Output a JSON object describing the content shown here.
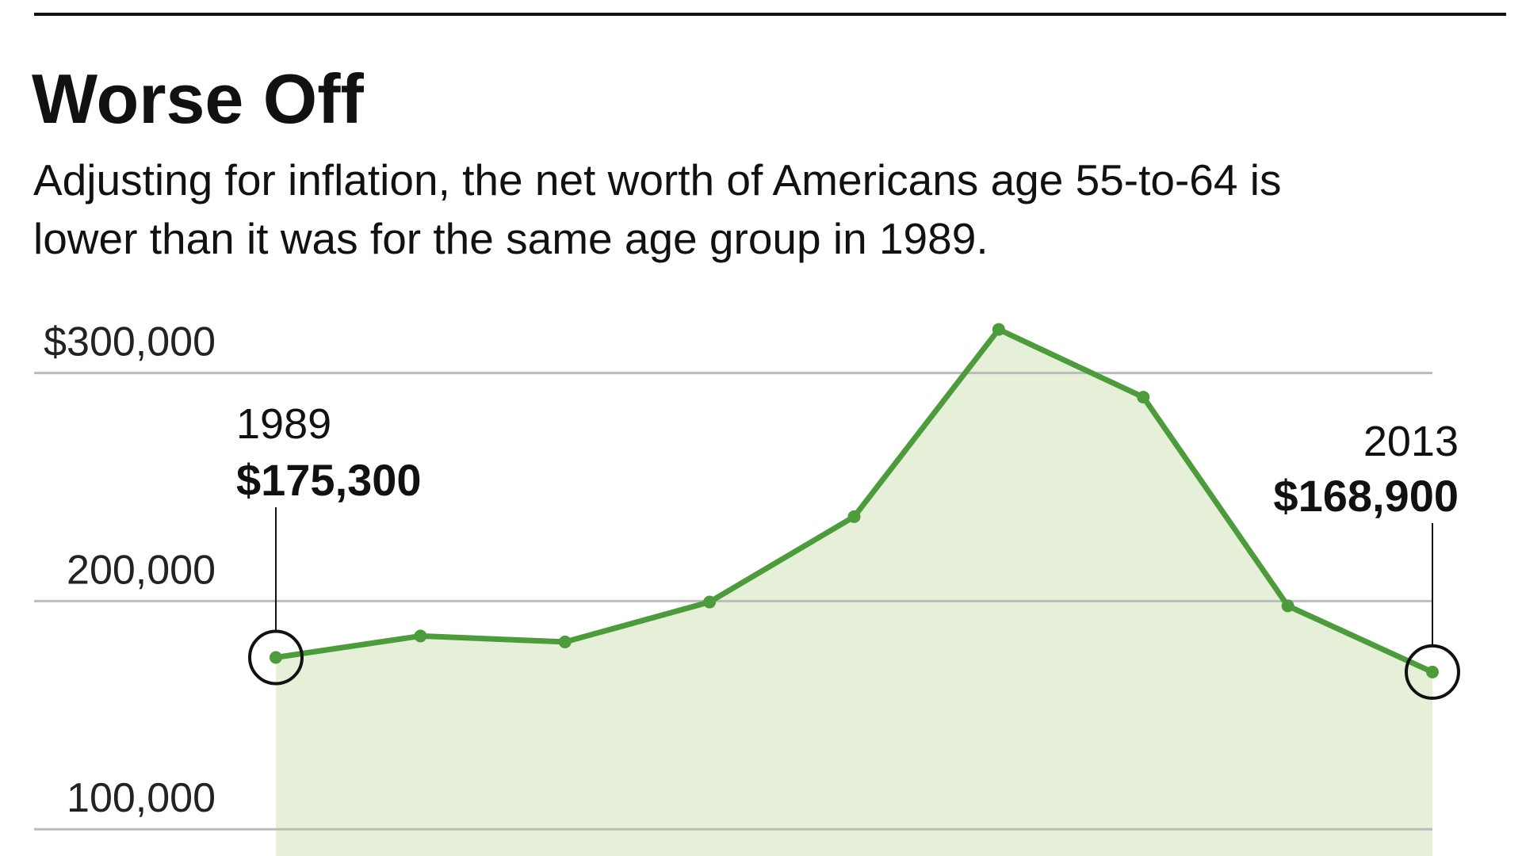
{
  "chart_data": {
    "type": "area",
    "title": "Worse Off",
    "subtitle": [
      "Adjusting for inflation, the net worth of Americans age 55-to-64 is",
      "lower than it was for the same age group in 1989."
    ],
    "categories": [
      "1989",
      null,
      null,
      null,
      null,
      null,
      null,
      null,
      "2013"
    ],
    "series": [
      {
        "color": "#4c9c3c",
        "fill": "#e6f0d9",
        "values": [
          175300,
          184700,
          182100,
          199600,
          237000,
          319100,
          289400,
          197900,
          168900
        ],
        "value_labels": [
          "$175,300",
          null,
          null,
          null,
          null,
          null,
          null,
          null,
          "$168,900"
        ]
      }
    ],
    "ylim": [
      90000,
      320000
    ],
    "yticks": [
      {
        "value": 100000,
        "label": "100,000"
      },
      {
        "value": 200000,
        "label": "200,000"
      },
      {
        "value": 300000,
        "label": "$300,000"
      }
    ],
    "grid": true
  }
}
